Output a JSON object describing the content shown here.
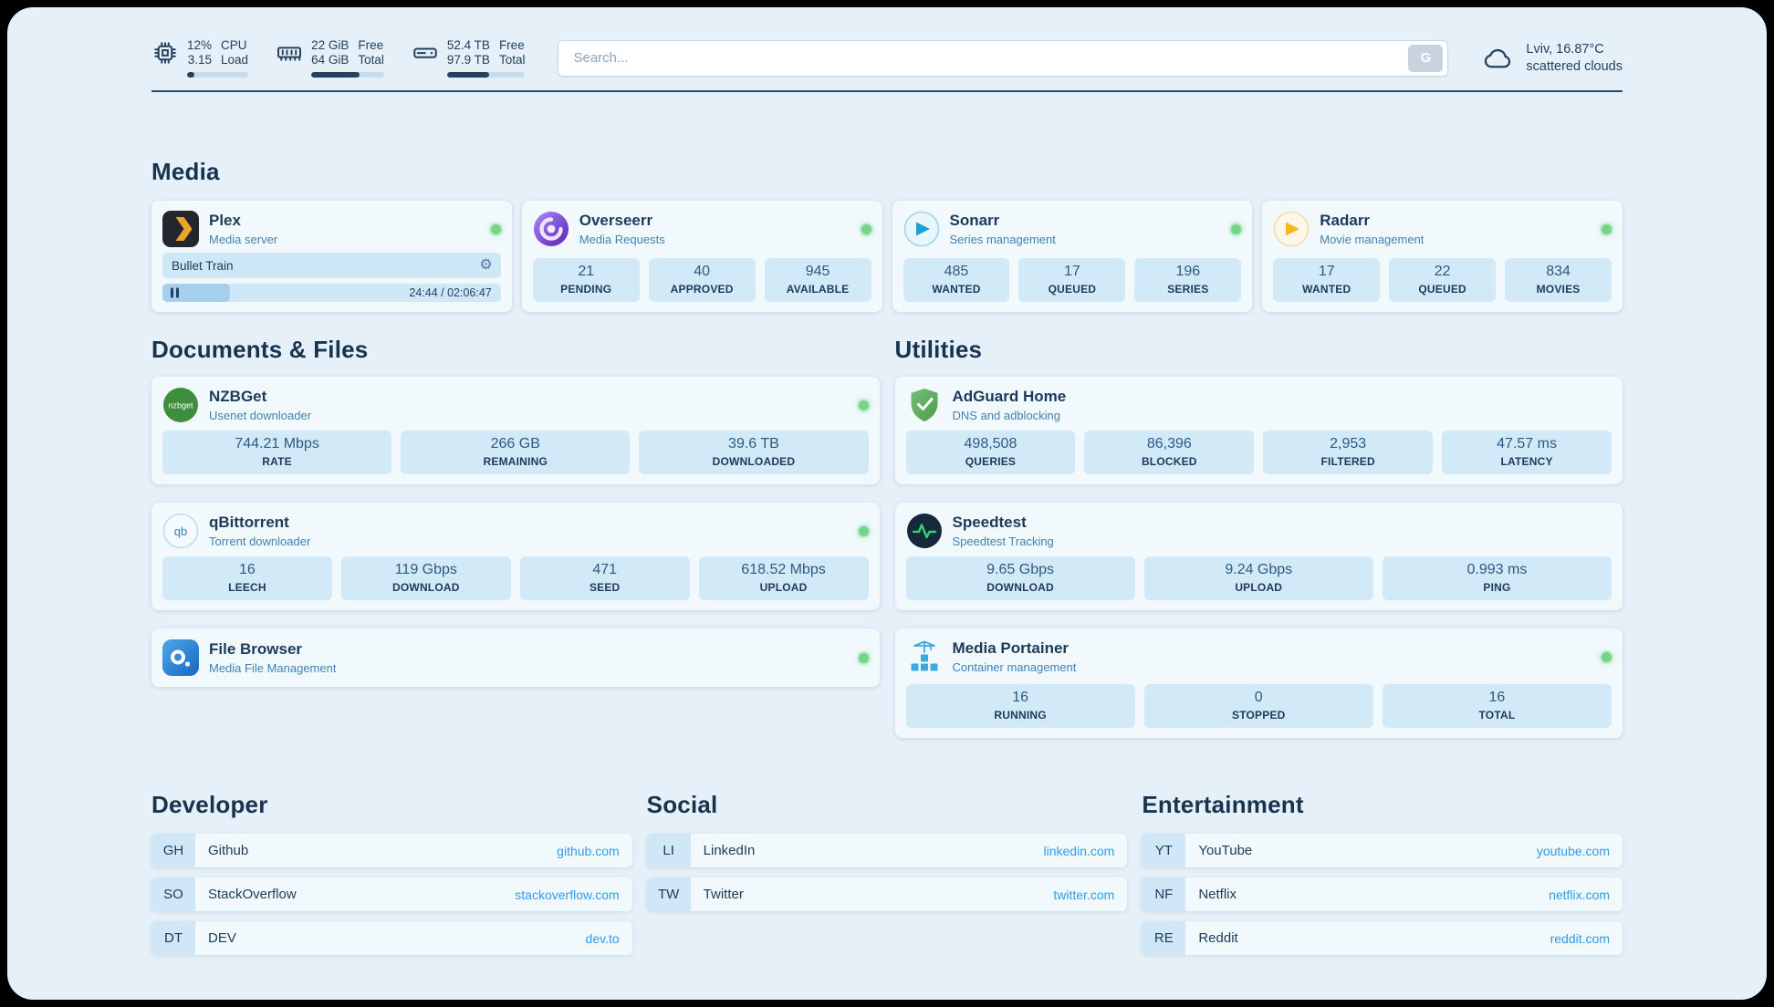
{
  "header": {
    "cpu": {
      "value1": "12%",
      "value2": "3.15",
      "label1": "CPU",
      "label2": "Load",
      "progress_pct": 12
    },
    "ram": {
      "value1": "22 GiB",
      "value2": "64 GiB",
      "label1": "Free",
      "label2": "Total",
      "progress_pct": 66
    },
    "disk": {
      "value1": "52.4 TB",
      "value2": "97.9 TB",
      "label1": "Free",
      "label2": "Total",
      "progress_pct": 54
    },
    "search": {
      "placeholder": "Search...",
      "button_label": "G"
    },
    "weather": {
      "location": "Lviv, 16.87°C",
      "condition": "scattered clouds"
    }
  },
  "sections": {
    "media": "Media",
    "documents": "Documents & Files",
    "utilities": "Utilities",
    "developer": "Developer",
    "social": "Social",
    "entertainment": "Entertainment"
  },
  "apps": {
    "plex": {
      "name": "Plex",
      "subtitle": "Media server",
      "player": {
        "title": "Bullet Train",
        "time": "24:44 / 02:06:47",
        "progress_pct": 20
      }
    },
    "overseerr": {
      "name": "Overseerr",
      "subtitle": "Media Requests",
      "stats": [
        {
          "value": "21",
          "label": "PENDING"
        },
        {
          "value": "40",
          "label": "APPROVED"
        },
        {
          "value": "945",
          "label": "AVAILABLE"
        }
      ]
    },
    "sonarr": {
      "name": "Sonarr",
      "subtitle": "Series management",
      "stats": [
        {
          "value": "485",
          "label": "WANTED"
        },
        {
          "value": "17",
          "label": "QUEUED"
        },
        {
          "value": "196",
          "label": "SERIES"
        }
      ]
    },
    "radarr": {
      "name": "Radarr",
      "subtitle": "Movie management",
      "stats": [
        {
          "value": "17",
          "label": "WANTED"
        },
        {
          "value": "22",
          "label": "QUEUED"
        },
        {
          "value": "834",
          "label": "MOVIES"
        }
      ]
    },
    "nzbget": {
      "name": "NZBGet",
      "subtitle": "Usenet downloader",
      "logo_text": "nzbget",
      "stats": [
        {
          "value": "744.21 Mbps",
          "label": "RATE"
        },
        {
          "value": "266 GB",
          "label": "REMAINING"
        },
        {
          "value": "39.6 TB",
          "label": "DOWNLOADED"
        }
      ]
    },
    "qbittorrent": {
      "name": "qBittorrent",
      "subtitle": "Torrent downloader",
      "logo_text": "qb",
      "stats": [
        {
          "value": "16",
          "label": "LEECH"
        },
        {
          "value": "119 Gbps",
          "label": "DOWNLOAD"
        },
        {
          "value": "471",
          "label": "SEED"
        },
        {
          "value": "618.52 Mbps",
          "label": "UPLOAD"
        }
      ]
    },
    "filebrowser": {
      "name": "File Browser",
      "subtitle": "Media File Management"
    },
    "adguard": {
      "name": "AdGuard Home",
      "subtitle": "DNS and adblocking",
      "stats": [
        {
          "value": "498,508",
          "label": "QUERIES"
        },
        {
          "value": "86,396",
          "label": "BLOCKED"
        },
        {
          "value": "2,953",
          "label": "FILTERED"
        },
        {
          "value": "47.57 ms",
          "label": "LATENCY"
        }
      ]
    },
    "speedtest": {
      "name": "Speedtest",
      "subtitle": "Speedtest Tracking",
      "stats": [
        {
          "value": "9.65 Gbps",
          "label": "DOWNLOAD"
        },
        {
          "value": "9.24 Gbps",
          "label": "UPLOAD"
        },
        {
          "value": "0.993 ms",
          "label": "PING"
        }
      ]
    },
    "portainer": {
      "name": "Media Portainer",
      "subtitle": "Container management",
      "stats": [
        {
          "value": "16",
          "label": "RUNNING"
        },
        {
          "value": "0",
          "label": "STOPPED"
        },
        {
          "value": "16",
          "label": "TOTAL"
        }
      ]
    }
  },
  "bookmarks": {
    "developer": [
      {
        "abbr": "GH",
        "name": "Github",
        "url": "github.com"
      },
      {
        "abbr": "SO",
        "name": "StackOverflow",
        "url": "stackoverflow.com"
      },
      {
        "abbr": "DT",
        "name": "DEV",
        "url": "dev.to"
      }
    ],
    "social": [
      {
        "abbr": "LI",
        "name": "LinkedIn",
        "url": "linkedin.com"
      },
      {
        "abbr": "TW",
        "name": "Twitter",
        "url": "twitter.com"
      }
    ],
    "entertainment": [
      {
        "abbr": "YT",
        "name": "YouTube",
        "url": "youtube.com"
      },
      {
        "abbr": "NF",
        "name": "Netflix",
        "url": "netflix.com"
      },
      {
        "abbr": "RE",
        "name": "Reddit",
        "url": "reddit.com"
      }
    ]
  },
  "colors": {
    "accent_link": "#2f9be8",
    "status_online": "#74d588",
    "navy": "#24425f"
  }
}
